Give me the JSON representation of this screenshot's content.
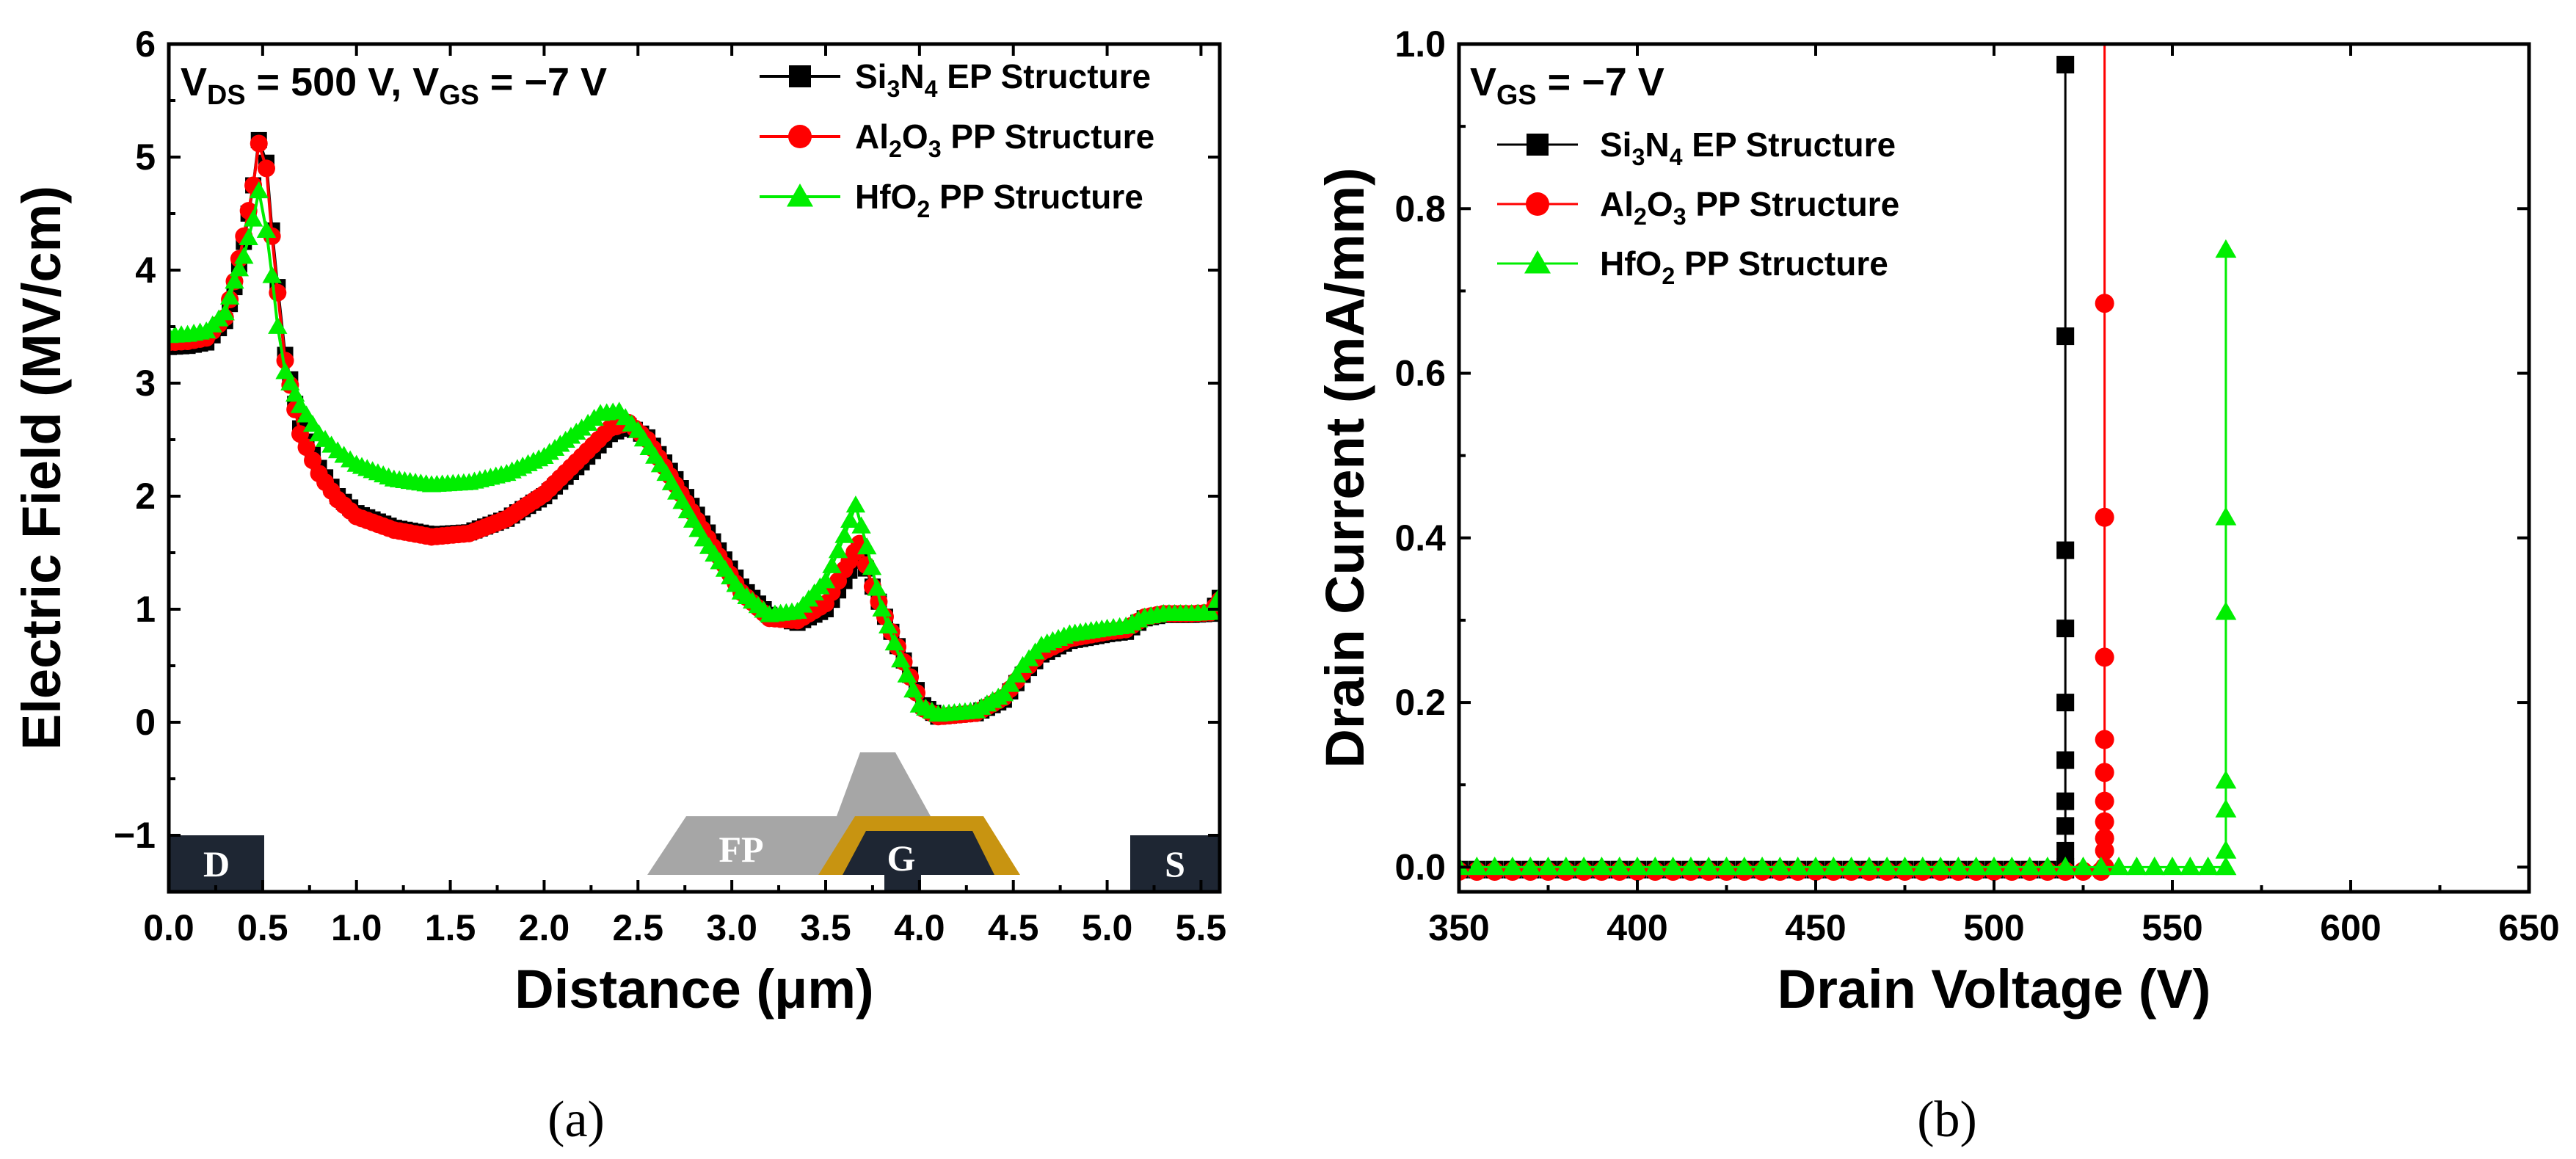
{
  "colors": {
    "si3n4": "#000000",
    "al2o3": "#ff0000",
    "hfo2": "#00ee00",
    "electrode": "#1e2633",
    "field_plate": "#a6a6a6",
    "gate_liner": "#c89411"
  },
  "chart_data": [
    {
      "id": "a",
      "type": "line",
      "panel_label": "(a)",
      "annotation": {
        "parts": [
          "V",
          "DS",
          " = 500 V, V",
          "GS",
          " = −7 V"
        ]
      },
      "xlabel": "Distance (μm)",
      "ylabel": "Electric Field (MV/cm)",
      "xlim": [
        0.0,
        5.6
      ],
      "ylim": [
        -1.5,
        6.0
      ],
      "xticks": [
        "0.0",
        "0.5",
        "1.0",
        "1.5",
        "2.0",
        "2.5",
        "3.0",
        "3.5",
        "4.0",
        "4.5",
        "5.0",
        "5.5"
      ],
      "yticks": [
        "−1",
        "0",
        "1",
        "2",
        "3",
        "4",
        "5",
        "6"
      ],
      "legend_position": "top-right",
      "structure_labels": {
        "drain": "D",
        "gate": "G",
        "source": "S",
        "field_plate": "FP"
      },
      "series": [
        {
          "name": "Si3N4 EP Structure",
          "legend": {
            "parts": [
              "Si",
              "3",
              "N",
              "4",
              " EP Structure"
            ]
          },
          "marker": "square",
          "color": "#000000",
          "points": [
            [
              0.0,
              3.32
            ],
            [
              0.1,
              3.33
            ],
            [
              0.2,
              3.36
            ],
            [
              0.3,
              3.55
            ],
            [
              0.35,
              3.85
            ],
            [
              0.4,
              4.25
            ],
            [
              0.45,
              4.75
            ],
            [
              0.48,
              5.15
            ],
            [
              0.52,
              4.95
            ],
            [
              0.55,
              4.35
            ],
            [
              0.58,
              3.85
            ],
            [
              0.62,
              3.25
            ],
            [
              0.7,
              2.6
            ],
            [
              0.8,
              2.25
            ],
            [
              0.9,
              2.0
            ],
            [
              1.0,
              1.85
            ],
            [
              1.2,
              1.72
            ],
            [
              1.4,
              1.66
            ],
            [
              1.6,
              1.68
            ],
            [
              1.8,
              1.8
            ],
            [
              2.0,
              2.0
            ],
            [
              2.2,
              2.3
            ],
            [
              2.35,
              2.55
            ],
            [
              2.45,
              2.62
            ],
            [
              2.55,
              2.52
            ],
            [
              2.7,
              2.15
            ],
            [
              2.9,
              1.6
            ],
            [
              3.05,
              1.2
            ],
            [
              3.2,
              0.95
            ],
            [
              3.35,
              0.88
            ],
            [
              3.5,
              1.0
            ],
            [
              3.6,
              1.25
            ],
            [
              3.68,
              1.52
            ],
            [
              3.75,
              1.2
            ],
            [
              3.85,
              0.8
            ],
            [
              3.95,
              0.42
            ],
            [
              4.02,
              0.15
            ],
            [
              4.1,
              0.05
            ],
            [
              4.3,
              0.08
            ],
            [
              4.45,
              0.2
            ],
            [
              4.55,
              0.42
            ],
            [
              4.65,
              0.6
            ],
            [
              4.8,
              0.72
            ],
            [
              5.0,
              0.78
            ],
            [
              5.1,
              0.8
            ],
            [
              5.2,
              0.92
            ],
            [
              5.3,
              0.95
            ],
            [
              5.45,
              0.95
            ],
            [
              5.55,
              0.96
            ],
            [
              5.6,
              1.1
            ]
          ]
        },
        {
          "name": "Al2O3 PP Structure",
          "legend": {
            "parts": [
              "Al",
              "2",
              "O",
              "3",
              " PP Structure"
            ]
          },
          "marker": "circle",
          "color": "#ff0000",
          "points": [
            [
              0.0,
              3.36
            ],
            [
              0.1,
              3.37
            ],
            [
              0.2,
              3.4
            ],
            [
              0.3,
              3.58
            ],
            [
              0.35,
              3.9
            ],
            [
              0.4,
              4.3
            ],
            [
              0.45,
              4.75
            ],
            [
              0.48,
              5.12
            ],
            [
              0.52,
              4.9
            ],
            [
              0.55,
              4.3
            ],
            [
              0.58,
              3.8
            ],
            [
              0.62,
              3.2
            ],
            [
              0.7,
              2.55
            ],
            [
              0.8,
              2.2
            ],
            [
              0.9,
              1.97
            ],
            [
              1.0,
              1.82
            ],
            [
              1.2,
              1.7
            ],
            [
              1.4,
              1.64
            ],
            [
              1.6,
              1.67
            ],
            [
              1.8,
              1.8
            ],
            [
              2.0,
              2.02
            ],
            [
              2.2,
              2.35
            ],
            [
              2.35,
              2.6
            ],
            [
              2.45,
              2.65
            ],
            [
              2.55,
              2.5
            ],
            [
              2.7,
              2.1
            ],
            [
              2.9,
              1.55
            ],
            [
              3.05,
              1.15
            ],
            [
              3.2,
              0.92
            ],
            [
              3.35,
              0.9
            ],
            [
              3.5,
              1.05
            ],
            [
              3.6,
              1.35
            ],
            [
              3.68,
              1.58
            ],
            [
              3.75,
              1.2
            ],
            [
              3.85,
              0.8
            ],
            [
              3.95,
              0.4
            ],
            [
              4.02,
              0.12
            ],
            [
              4.1,
              0.05
            ],
            [
              4.3,
              0.08
            ],
            [
              4.45,
              0.22
            ],
            [
              4.55,
              0.44
            ],
            [
              4.65,
              0.62
            ],
            [
              4.8,
              0.74
            ],
            [
              5.0,
              0.8
            ],
            [
              5.1,
              0.82
            ],
            [
              5.2,
              0.93
            ],
            [
              5.3,
              0.96
            ],
            [
              5.45,
              0.96
            ],
            [
              5.55,
              0.97
            ],
            [
              5.6,
              1.08
            ]
          ]
        },
        {
          "name": "HfO2 PP Structure",
          "legend": {
            "parts": [
              "HfO",
              "2",
              " PP Structure"
            ]
          },
          "marker": "triangle",
          "color": "#00ee00",
          "points": [
            [
              0.0,
              3.42
            ],
            [
              0.1,
              3.43
            ],
            [
              0.2,
              3.46
            ],
            [
              0.3,
              3.62
            ],
            [
              0.35,
              3.9
            ],
            [
              0.4,
              4.12
            ],
            [
              0.45,
              4.45
            ],
            [
              0.48,
              4.7
            ],
            [
              0.52,
              4.35
            ],
            [
              0.55,
              3.95
            ],
            [
              0.58,
              3.5
            ],
            [
              0.62,
              3.1
            ],
            [
              0.7,
              2.8
            ],
            [
              0.8,
              2.55
            ],
            [
              0.9,
              2.4
            ],
            [
              1.0,
              2.28
            ],
            [
              1.2,
              2.15
            ],
            [
              1.4,
              2.1
            ],
            [
              1.6,
              2.12
            ],
            [
              1.8,
              2.2
            ],
            [
              2.0,
              2.35
            ],
            [
              2.2,
              2.6
            ],
            [
              2.3,
              2.73
            ],
            [
              2.4,
              2.75
            ],
            [
              2.5,
              2.58
            ],
            [
              2.65,
              2.2
            ],
            [
              2.85,
              1.62
            ],
            [
              3.05,
              1.15
            ],
            [
              3.2,
              0.95
            ],
            [
              3.35,
              0.98
            ],
            [
              3.5,
              1.25
            ],
            [
              3.6,
              1.65
            ],
            [
              3.66,
              1.92
            ],
            [
              3.72,
              1.55
            ],
            [
              3.8,
              1.0
            ],
            [
              3.9,
              0.55
            ],
            [
              4.0,
              0.15
            ],
            [
              4.1,
              0.07
            ],
            [
              4.3,
              0.1
            ],
            [
              4.45,
              0.25
            ],
            [
              4.55,
              0.5
            ],
            [
              4.65,
              0.68
            ],
            [
              4.8,
              0.78
            ],
            [
              5.0,
              0.83
            ],
            [
              5.1,
              0.85
            ],
            [
              5.2,
              0.93
            ],
            [
              5.3,
              0.96
            ],
            [
              5.45,
              0.96
            ],
            [
              5.55,
              0.97
            ],
            [
              5.6,
              1.12
            ]
          ]
        }
      ]
    },
    {
      "id": "b",
      "type": "line",
      "panel_label": "(b)",
      "annotation": {
        "parts": [
          "V",
          "GS",
          " = −7 V"
        ]
      },
      "xlabel": "Drain Voltage (V)",
      "ylabel": "Drain Current (mA/mm)",
      "xlim": [
        350,
        650
      ],
      "ylim": [
        -0.03,
        1.0
      ],
      "xticks": [
        "350",
        "400",
        "450",
        "500",
        "550",
        "600",
        "650"
      ],
      "yticks": [
        "0.0",
        "0.2",
        "0.4",
        "0.6",
        "0.8",
        "1.0"
      ],
      "legend_position": "top-left",
      "series": [
        {
          "name": "Si3N4 EP Structure",
          "legend": {
            "parts": [
              "Si",
              "3",
              "N",
              "4",
              " EP Structure"
            ]
          },
          "marker": "square",
          "color": "#000000",
          "flat": {
            "x_start": 350,
            "x_end": 520,
            "step": 5,
            "y": -0.003
          },
          "points": [
            [
              520,
              0.0
            ],
            [
              520,
              0.02
            ],
            [
              520,
              0.05
            ],
            [
              520,
              0.08
            ],
            [
              520,
              0.13
            ],
            [
              520,
              0.2
            ],
            [
              520,
              0.29
            ],
            [
              520,
              0.385
            ],
            [
              520,
              0.645
            ],
            [
              520,
              0.975
            ]
          ]
        },
        {
          "name": "Al2O3 PP Structure",
          "legend": {
            "parts": [
              "Al",
              "2",
              "O",
              "3",
              " PP Structure"
            ]
          },
          "marker": "circle",
          "color": "#ff0000",
          "flat": {
            "x_start": 350,
            "x_end": 531,
            "step": 5,
            "y": -0.005
          },
          "points": [
            [
              531,
              0.0
            ],
            [
              531,
              0.02
            ],
            [
              531,
              0.035
            ],
            [
              531,
              0.055
            ],
            [
              531,
              0.08
            ],
            [
              531,
              0.115
            ],
            [
              531,
              0.155
            ],
            [
              531,
              0.255
            ],
            [
              531,
              0.425
            ],
            [
              531,
              0.685
            ],
            [
              531,
              1.0
            ]
          ]
        },
        {
          "name": "HfO2 PP Structure",
          "legend": {
            "parts": [
              "HfO",
              "2",
              " PP Structure"
            ]
          },
          "marker": "triangle",
          "color": "#00ee00",
          "flat": {
            "x_start": 350,
            "x_end": 565,
            "step": 5,
            "y": 0.0
          },
          "points": [
            [
              565,
              0.0
            ],
            [
              565,
              0.02
            ],
            [
              565,
              0.07
            ],
            [
              565,
              0.105
            ],
            [
              565,
              0.31
            ],
            [
              565,
              0.425
            ],
            [
              565,
              0.75
            ]
          ]
        }
      ]
    }
  ]
}
